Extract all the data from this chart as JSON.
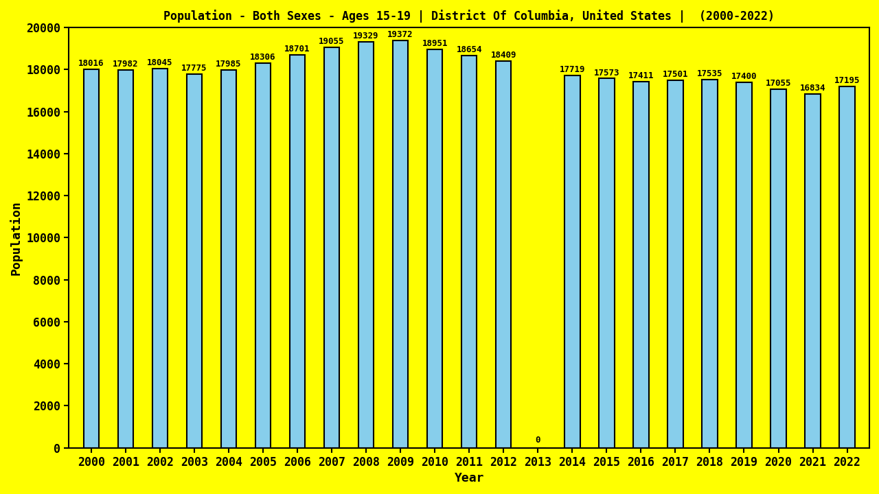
{
  "years": [
    2000,
    2001,
    2002,
    2003,
    2004,
    2005,
    2006,
    2007,
    2008,
    2009,
    2010,
    2011,
    2012,
    2013,
    2014,
    2015,
    2016,
    2017,
    2018,
    2019,
    2020,
    2021,
    2022
  ],
  "values": [
    18016,
    17982,
    18045,
    17775,
    17985,
    18306,
    18701,
    19055,
    19329,
    19372,
    18951,
    18654,
    18409,
    0,
    17719,
    17573,
    17411,
    17501,
    17535,
    17400,
    17055,
    16834,
    17195
  ],
  "bar_color": "#87CEEB",
  "bar_edge_color": "#000000",
  "background_color": "#FFFF00",
  "title": "Population - Both Sexes - Ages 15-19 | District Of Columbia, United States |  (2000-2022)",
  "xlabel": "Year",
  "ylabel": "Population",
  "ylim": [
    0,
    20000
  ],
  "yticks": [
    0,
    2000,
    4000,
    6000,
    8000,
    10000,
    12000,
    14000,
    16000,
    18000,
    20000
  ],
  "title_fontsize": 12,
  "label_fontsize": 13,
  "tick_fontsize": 12,
  "value_fontsize": 9,
  "bar_width": 0.45
}
